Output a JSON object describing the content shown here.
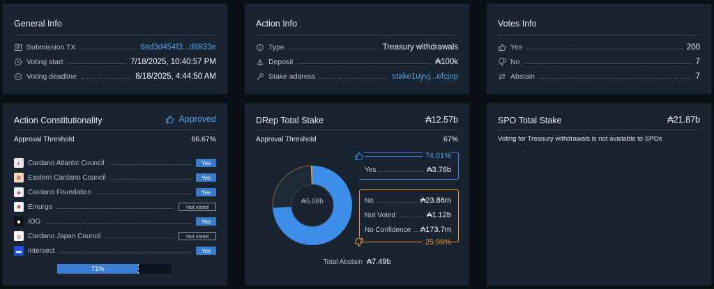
{
  "general_info": {
    "title": "General Info",
    "submission_tx_label": "Submission TX",
    "submission_tx_value": "8ad3d454f3...d8833e",
    "voting_start_label": "Voting start",
    "voting_start_value": "7/18/2025, 10:40:57 PM",
    "voting_deadline_label": "Voting deadline",
    "voting_deadline_value": "8/18/2025, 4:44:50 AM"
  },
  "action_info": {
    "title": "Action Info",
    "type_label": "Type",
    "type_value": "Treasury withdrawals",
    "deposit_label": "Deposit",
    "deposit_value": "₳100k",
    "stake_label": "Stake address",
    "stake_value": "stake1uyvj...efcjnp"
  },
  "votes_info": {
    "title": "Votes Info",
    "yes_label": "Yes",
    "yes_value": "200",
    "no_label": "No",
    "no_value": "7",
    "abstain_label": "Abstain",
    "abstain_value": "7"
  },
  "constitutionality": {
    "title": "Action Constitutionality",
    "status": "Approved",
    "threshold_label": "Approval Threshold",
    "threshold_value": "66.67%",
    "members": [
      {
        "name": "Cardano Atlantic Council",
        "vote": "Yes",
        "color": "#e8e8e8"
      },
      {
        "name": "Eastern Cardano Council",
        "vote": "Yes",
        "color": "#f3d9c2"
      },
      {
        "name": "Cardano Foundation",
        "vote": "Yes",
        "color": "#e9eef7"
      },
      {
        "name": "Emurgo",
        "vote": "Not voted",
        "color": "#ffffff"
      },
      {
        "name": "IOG",
        "vote": "Yes",
        "color": "#101010"
      },
      {
        "name": "Cardano Japan Council",
        "vote": "Not voted",
        "color": "#ffffff"
      },
      {
        "name": "Intersect",
        "vote": "Yes",
        "color": "#1f4fd6"
      }
    ],
    "progress_text": "71%",
    "progress_fraction": 0.71,
    "progress_threshold_fraction": 0.6667
  },
  "drep": {
    "title": "DRep Total Stake",
    "total": "₳12.57b",
    "threshold_label": "Approval Threshold",
    "threshold_value": "67%",
    "donut_center": "₳5.08b",
    "yes_pct": "74.01%",
    "yes_label": "Yes",
    "yes_value": "₳3.76b",
    "no_label": "No",
    "no_value": "₳23.86m",
    "not_voted_label": "Not Voted",
    "not_voted_value": "₳1.12b",
    "no_conf_label": "No Confidence",
    "no_conf_value": "₳173.7m",
    "no_pct": "25.99%",
    "abstain_label": "Total Abstain",
    "abstain_value": "₳7.49b",
    "colors": {
      "yes": "#3d8ee8",
      "no": "#e89a3c",
      "empty": "#1f2a37"
    }
  },
  "spo": {
    "title": "SPO Total Stake",
    "total": "₳21.87b",
    "message": "Voting for Treasury withdrawals is not available to SPOs"
  },
  "chart_data": {
    "type": "pie",
    "categories": [
      "Yes",
      "No",
      "Not Voted",
      "No Confidence"
    ],
    "values": [
      3760,
      23.86,
      1120,
      173.7
    ],
    "unit": "₳ millions"
  }
}
